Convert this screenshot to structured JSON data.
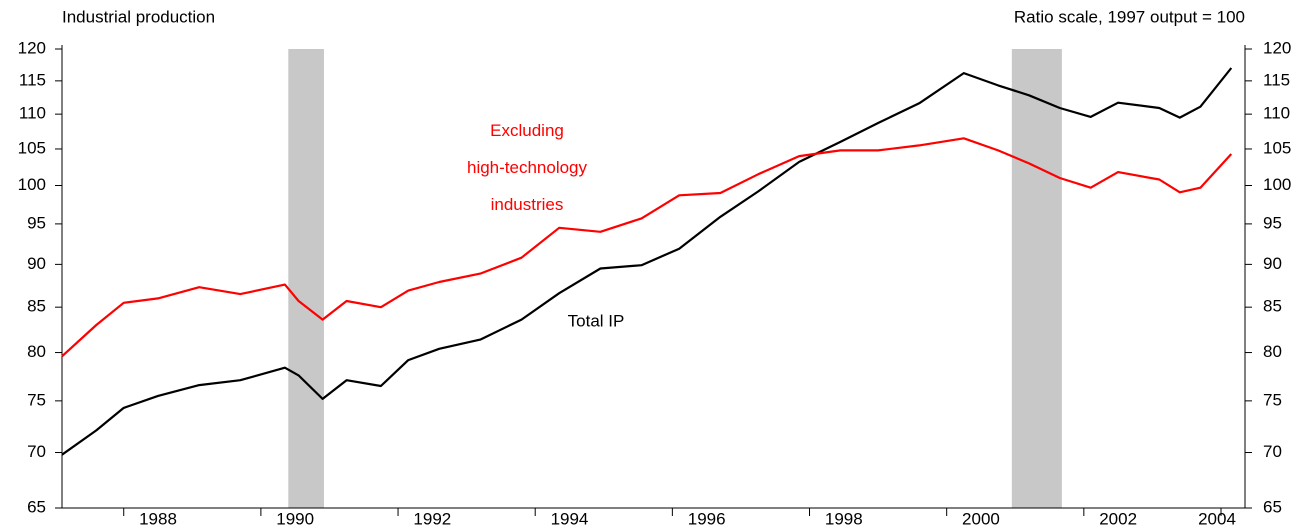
{
  "chart_data": {
    "type": "line",
    "title": "Industrial production",
    "subtitle": "Ratio scale, 1997 output = 100",
    "log_scale": true,
    "xlim": [
      1987.1,
      2004.35
    ],
    "xticks": [
      1988,
      1990,
      1992,
      1994,
      1996,
      1998,
      2000,
      2002,
      2004
    ],
    "ylim": [
      65,
      120
    ],
    "yticks": [
      65,
      70,
      75,
      80,
      85,
      90,
      95,
      100,
      105,
      110,
      115,
      120
    ],
    "shaded_periods": [
      [
        1990.4,
        1990.92
      ],
      [
        2000.95,
        2001.68
      ]
    ],
    "shade_color": "#c8c8c8",
    "x": [
      1987.1,
      1987.6,
      1988.0,
      1988.5,
      1989.1,
      1989.7,
      1990.35,
      1990.55,
      1990.9,
      1991.25,
      1991.75,
      1992.15,
      1992.6,
      1993.2,
      1993.8,
      1994.35,
      1994.95,
      1995.55,
      1996.1,
      1996.7,
      1997.25,
      1997.85,
      1998.45,
      1999.0,
      1999.6,
      2000.25,
      2000.75,
      2001.2,
      2001.65,
      2002.1,
      2002.5,
      2003.1,
      2003.4,
      2003.7,
      2004.15
    ],
    "series": [
      {
        "name": "Total IP",
        "color": "#000000",
        "values": [
          69.8,
          72.1,
          74.3,
          75.5,
          76.6,
          77.1,
          78.4,
          77.6,
          75.2,
          77.1,
          76.5,
          79.2,
          80.4,
          81.4,
          83.6,
          86.6,
          89.5,
          89.9,
          91.9,
          95.9,
          99.2,
          103.2,
          106,
          108.7,
          111.6,
          116.2,
          114.3,
          112.8,
          110.9,
          109.6,
          111.7,
          110.9,
          109.5,
          111.1,
          117.0
        ]
      },
      {
        "name": "Excluding high-technology industries",
        "color": "#ff0000",
        "values": [
          79.6,
          83.0,
          85.5,
          86.0,
          87.3,
          86.5,
          87.6,
          85.7,
          83.6,
          85.7,
          85.0,
          86.9,
          87.9,
          88.9,
          90.8,
          94.5,
          94.0,
          95.7,
          98.7,
          99.0,
          101.5,
          104,
          104.8,
          104.8,
          105.5,
          106.5,
          104.8,
          103,
          101,
          99.7,
          101.8,
          100.8,
          99.1,
          99.7,
          104.3
        ]
      }
    ]
  }
}
